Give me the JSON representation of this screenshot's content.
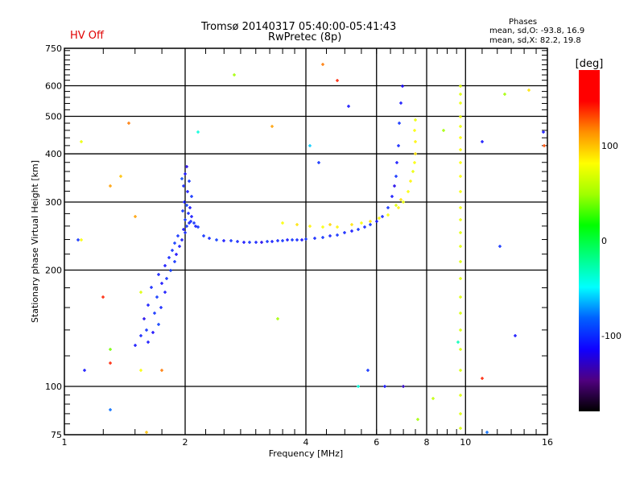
{
  "header": {
    "title_line1": "Tromsø 20140317 05:40:00-05:41:43",
    "title_line2": "RwPretec (8p)",
    "hv_status": "HV Off",
    "stats_title": "Phases",
    "stats_o": "mean, sd,O:  -93.8, 16.9",
    "stats_x": "mean, sd,X:   82.2, 19.8"
  },
  "colors": {
    "hv_status": "#e00000",
    "grid": "#000000"
  },
  "chart_data": {
    "type": "scatter",
    "title": "Tromsø 20140317 05:40:00-05:41:43 RwPretec (8p)",
    "xlabel": "Frequency [MHz]",
    "ylabel": "Stationary phase Virtual Height [km]",
    "xscale": "log",
    "yscale": "log",
    "xlim": [
      1,
      16
    ],
    "ylim": [
      75,
      750
    ],
    "xticks": [
      1,
      2,
      4,
      6,
      8,
      10,
      16
    ],
    "xtick_labels": [
      "1",
      "2",
      "4",
      "6",
      "8",
      "10",
      "16"
    ],
    "yticks": [
      75,
      100,
      200,
      300,
      400,
      500,
      600,
      750
    ],
    "ytick_labels": [
      "75",
      "100",
      "200",
      "300",
      "400",
      "500",
      "600",
      "750"
    ],
    "grid": true,
    "colorbar": {
      "label": "[deg]",
      "range": [
        -180,
        180
      ],
      "ticks": [
        -100,
        0,
        100
      ],
      "tick_labels": [
        "-100",
        "0",
        "100"
      ],
      "colormap": [
        "#000000",
        "#500080",
        "#1000ff",
        "#0060ff",
        "#00ffff",
        "#00ff80",
        "#00ff00",
        "#a0ff00",
        "#ffff00",
        "#ff9000",
        "#ff0000",
        "#ff0000"
      ]
    },
    "point_fields": [
      "freq_mhz",
      "height_km",
      "phase_deg"
    ],
    "points": [
      [
        1.62,
        130,
        -110
      ],
      [
        1.55,
        135,
        -105
      ],
      [
        1.6,
        140,
        -100
      ],
      [
        1.66,
        138,
        -115
      ],
      [
        1.72,
        145,
        -95
      ],
      [
        1.5,
        128,
        -110
      ],
      [
        1.58,
        150,
        -120
      ],
      [
        1.68,
        155,
        -100
      ],
      [
        1.62,
        162,
        -108
      ],
      [
        1.74,
        160,
        -105
      ],
      [
        1.7,
        170,
        -98
      ],
      [
        1.78,
        175,
        -110
      ],
      [
        1.65,
        180,
        -104
      ],
      [
        1.75,
        185,
        -112
      ],
      [
        1.8,
        190,
        -100
      ],
      [
        1.72,
        195,
        -106
      ],
      [
        1.84,
        200,
        -96
      ],
      [
        1.78,
        205,
        -110
      ],
      [
        1.88,
        210,
        -100
      ],
      [
        1.82,
        215,
        -104
      ],
      [
        1.9,
        220,
        -115
      ],
      [
        1.86,
        225,
        -100
      ],
      [
        1.94,
        230,
        -108
      ],
      [
        1.88,
        235,
        -96
      ],
      [
        1.96,
        240,
        -110
      ],
      [
        1.92,
        245,
        -100
      ],
      [
        2.0,
        250,
        -104
      ],
      [
        1.98,
        255,
        -112
      ],
      [
        2.02,
        260,
        -100
      ],
      [
        2.05,
        265,
        -106
      ],
      [
        2.0,
        270,
        -98
      ],
      [
        2.08,
        275,
        -110
      ],
      [
        2.04,
        280,
        -104
      ],
      [
        1.97,
        285,
        -100
      ],
      [
        2.06,
        290,
        -112
      ],
      [
        2.02,
        295,
        -96
      ],
      [
        1.99,
        300,
        -108
      ],
      [
        2.08,
        310,
        -100
      ],
      [
        2.03,
        320,
        -110
      ],
      [
        1.98,
        330,
        -104
      ],
      [
        2.05,
        340,
        -100
      ],
      [
        2.0,
        355,
        -112
      ],
      [
        2.02,
        370,
        -120
      ],
      [
        1.96,
        345,
        -90
      ],
      [
        2.1,
        265,
        -100
      ],
      [
        2.12,
        260,
        -108
      ],
      [
        2.07,
        268,
        -104
      ],
      [
        2.15,
        258,
        -100
      ],
      [
        2.22,
        245,
        -100
      ],
      [
        2.3,
        242,
        -104
      ],
      [
        2.4,
        240,
        -96
      ],
      [
        2.5,
        238,
        -110
      ],
      [
        2.6,
        238,
        -100
      ],
      [
        2.7,
        237,
        -104
      ],
      [
        2.8,
        236,
        -112
      ],
      [
        2.9,
        236,
        -100
      ],
      [
        3.0,
        236,
        -106
      ],
      [
        3.1,
        236,
        -120
      ],
      [
        3.2,
        237,
        -100
      ],
      [
        3.3,
        237,
        -108
      ],
      [
        3.4,
        238,
        -104
      ],
      [
        3.5,
        238,
        -100
      ],
      [
        3.6,
        239,
        -110
      ],
      [
        3.7,
        239,
        -100
      ],
      [
        3.8,
        240,
        -104
      ],
      [
        3.9,
        240,
        -112
      ],
      [
        4.0,
        241,
        -100
      ],
      [
        4.2,
        242,
        -104
      ],
      [
        4.4,
        243,
        -100
      ],
      [
        4.6,
        245,
        -106
      ],
      [
        4.8,
        247,
        -100
      ],
      [
        5.0,
        250,
        -104
      ],
      [
        5.2,
        252,
        -110
      ],
      [
        5.4,
        255,
        -100
      ],
      [
        5.6,
        258,
        -104
      ],
      [
        5.8,
        262,
        -100
      ],
      [
        6.0,
        268,
        -110
      ],
      [
        6.2,
        275,
        -104
      ],
      [
        6.4,
        290,
        -100
      ],
      [
        6.55,
        310,
        -110
      ],
      [
        6.65,
        330,
        -120
      ],
      [
        6.7,
        350,
        -100
      ],
      [
        6.75,
        380,
        -110
      ],
      [
        6.8,
        420,
        -104
      ],
      [
        6.85,
        480,
        -100
      ],
      [
        6.9,
        540,
        -110
      ],
      [
        6.95,
        600,
        -115
      ],
      [
        3.5,
        265,
        80
      ],
      [
        3.8,
        262,
        90
      ],
      [
        4.1,
        260,
        85
      ],
      [
        4.4,
        258,
        80
      ],
      [
        4.6,
        262,
        95
      ],
      [
        4.8,
        258,
        85
      ],
      [
        5.2,
        262,
        90
      ],
      [
        5.5,
        265,
        80
      ],
      [
        5.8,
        268,
        90
      ],
      [
        6.1,
        272,
        85
      ],
      [
        6.4,
        278,
        80
      ],
      [
        6.8,
        290,
        85
      ],
      [
        7.0,
        300,
        75
      ],
      [
        7.2,
        320,
        80
      ],
      [
        7.3,
        340,
        85
      ],
      [
        7.4,
        360,
        75
      ],
      [
        7.45,
        380,
        80
      ],
      [
        7.5,
        400,
        90
      ],
      [
        7.5,
        430,
        85
      ],
      [
        7.45,
        460,
        80
      ],
      [
        7.5,
        490,
        75
      ],
      [
        6.7,
        295,
        70
      ],
      [
        6.9,
        305,
        90
      ],
      [
        9.7,
        600,
        70
      ],
      [
        9.7,
        570,
        70
      ],
      [
        9.7,
        540,
        75
      ],
      [
        9.7,
        500,
        75
      ],
      [
        9.7,
        470,
        75
      ],
      [
        9.7,
        440,
        80
      ],
      [
        9.7,
        410,
        80
      ],
      [
        9.7,
        380,
        80
      ],
      [
        9.7,
        350,
        80
      ],
      [
        9.7,
        320,
        78
      ],
      [
        9.7,
        290,
        76
      ],
      [
        9.7,
        270,
        75
      ],
      [
        9.7,
        250,
        72
      ],
      [
        9.7,
        230,
        72
      ],
      [
        9.7,
        210,
        70
      ],
      [
        9.7,
        190,
        70
      ],
      [
        9.7,
        170,
        70
      ],
      [
        9.7,
        155,
        68
      ],
      [
        9.7,
        140,
        68
      ],
      [
        9.7,
        125,
        68
      ],
      [
        9.7,
        110,
        68
      ],
      [
        9.7,
        95,
        70
      ],
      [
        9.7,
        85,
        70
      ],
      [
        9.7,
        78,
        68
      ],
      [
        1.08,
        240,
        -100
      ],
      [
        1.1,
        240,
        80
      ],
      [
        1.1,
        430,
        75
      ],
      [
        1.12,
        110,
        -110
      ],
      [
        1.25,
        170,
        140
      ],
      [
        1.3,
        330,
        110
      ],
      [
        1.3,
        125,
        40
      ],
      [
        1.3,
        115,
        140
      ],
      [
        1.3,
        87,
        -80
      ],
      [
        1.38,
        350,
        100
      ],
      [
        1.45,
        480,
        120
      ],
      [
        1.5,
        275,
        110
      ],
      [
        1.55,
        175,
        70
      ],
      [
        1.55,
        110,
        80
      ],
      [
        1.6,
        76,
        100
      ],
      [
        1.75,
        110,
        120
      ],
      [
        2.15,
        455,
        -40
      ],
      [
        2.65,
        640,
        50
      ],
      [
        3.3,
        470,
        110
      ],
      [
        3.4,
        150,
        50
      ],
      [
        4.1,
        420,
        -60
      ],
      [
        4.4,
        680,
        120
      ],
      [
        4.8,
        620,
        140
      ],
      [
        4.3,
        380,
        -100
      ],
      [
        5.1,
        530,
        -110
      ],
      [
        5.4,
        100,
        -40
      ],
      [
        5.7,
        110,
        -100
      ],
      [
        6.3,
        100,
        -110
      ],
      [
        7.0,
        100,
        -130
      ],
      [
        7.6,
        82,
        50
      ],
      [
        8.3,
        93,
        60
      ],
      [
        8.8,
        460,
        50
      ],
      [
        9.6,
        130,
        -30
      ],
      [
        11.0,
        430,
        -110
      ],
      [
        11.0,
        105,
        140
      ],
      [
        12.2,
        230,
        -100
      ],
      [
        13.3,
        135,
        -110
      ],
      [
        15.6,
        455,
        -110
      ],
      [
        15.7,
        420,
        130
      ],
      [
        14.4,
        585,
        90
      ],
      [
        12.5,
        570,
        50
      ],
      [
        11.3,
        76,
        -80
      ]
    ]
  }
}
